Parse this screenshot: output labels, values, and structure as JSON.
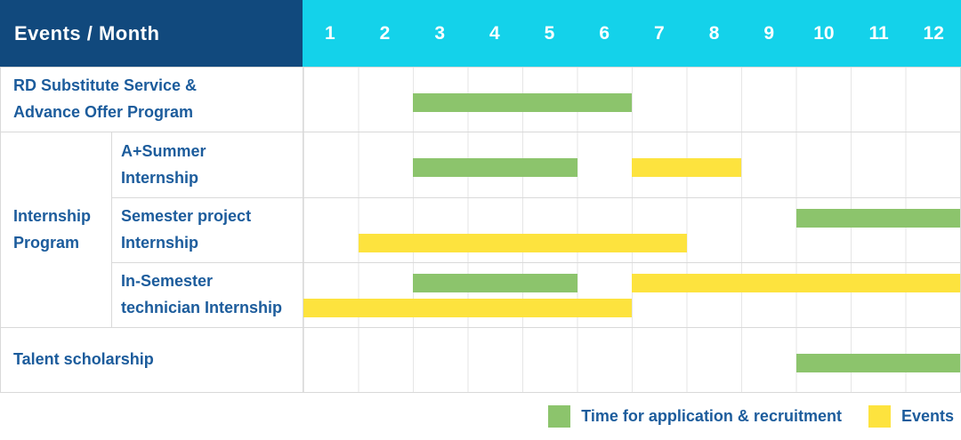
{
  "header": {
    "title": "Events / Month",
    "months": [
      "1",
      "2",
      "3",
      "4",
      "5",
      "6",
      "7",
      "8",
      "9",
      "10",
      "11",
      "12"
    ]
  },
  "colors": {
    "header_bg": "#11497D",
    "months_bg": "#14D2EA",
    "application": "#8CC46C",
    "event": "#FDE33E",
    "label_text": "#1C5C9C"
  },
  "legend": {
    "application": "Time for application & recruitment",
    "events": "Events"
  },
  "chart_data": {
    "type": "bar",
    "subtype": "gantt",
    "title": "Events / Month",
    "x_axis": {
      "label": "Month",
      "ticks": [
        1,
        2,
        3,
        4,
        5,
        6,
        7,
        8,
        9,
        10,
        11,
        12
      ],
      "range": [
        1,
        12
      ]
    },
    "group_label": "Internship\nProgram",
    "legend": [
      {
        "key": "application",
        "label": "Time for application & recruitment",
        "color": "#8CC46C"
      },
      {
        "key": "event",
        "label": "Events",
        "color": "#FDE33E"
      }
    ],
    "tasks": [
      {
        "name": "RD Substitute Service & Advance Offer Program",
        "label": "RD Substitute Service &\nAdvance Offer Program",
        "group": null,
        "lanes": 1,
        "bars": [
          {
            "kind": "application",
            "start": 3,
            "end": 6,
            "lane": 0
          }
        ]
      },
      {
        "name": "A+Summer Internship",
        "label": "A+Summer\nInternship",
        "group": "Internship Program",
        "lanes": 1,
        "bars": [
          {
            "kind": "application",
            "start": 3,
            "end": 5,
            "lane": 0
          },
          {
            "kind": "event",
            "start": 7,
            "end": 8,
            "lane": 0
          }
        ]
      },
      {
        "name": "Semester project Internship",
        "label": "Semester project\nInternship",
        "group": "Internship Program",
        "lanes": 2,
        "bars": [
          {
            "kind": "application",
            "start": 10,
            "end": 12,
            "lane": 0
          },
          {
            "kind": "event",
            "start": 2,
            "end": 7,
            "lane": 1
          }
        ]
      },
      {
        "name": "In-Semester technician Internship",
        "label": "In-Semester\ntechnician Internship",
        "group": "Internship Program",
        "lanes": 2,
        "bars": [
          {
            "kind": "application",
            "start": 3,
            "end": 5,
            "lane": 0
          },
          {
            "kind": "event",
            "start": 7,
            "end": 12,
            "lane": 0
          },
          {
            "kind": "event",
            "start": 1,
            "end": 6,
            "lane": 1
          }
        ]
      },
      {
        "name": "Talent scholarship",
        "label": "Talent scholarship",
        "group": null,
        "lanes": 1,
        "bars": [
          {
            "kind": "application",
            "start": 10,
            "end": 12,
            "lane": 0
          }
        ]
      }
    ]
  }
}
